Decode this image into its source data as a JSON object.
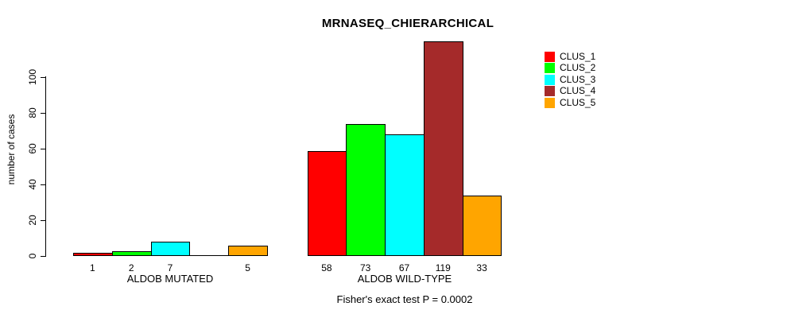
{
  "chart_data": {
    "type": "bar",
    "title": "MRNASEQ_CHIERARCHICAL",
    "ylabel": "number of cases",
    "xlabel": "",
    "footnote": "Fisher's exact test P = 0.0002",
    "ylim": [
      0,
      119
    ],
    "yticks": [
      0,
      20,
      40,
      60,
      80,
      100
    ],
    "grid": false,
    "legend_position": "right-outside",
    "categories": [
      "ALDOB MUTATED",
      "ALDOB WILD-TYPE"
    ],
    "series": [
      {
        "name": "CLUS_1",
        "color": "#ff0000",
        "values": [
          1,
          58
        ]
      },
      {
        "name": "CLUS_2",
        "color": "#00ff00",
        "values": [
          2,
          73
        ]
      },
      {
        "name": "CLUS_3",
        "color": "#00ffff",
        "values": [
          7,
          67
        ]
      },
      {
        "name": "CLUS_4",
        "color": "#a52a2a",
        "values": [
          0,
          119
        ]
      },
      {
        "name": "CLUS_5",
        "color": "#ffa500",
        "values": [
          5,
          33
        ]
      }
    ],
    "bar_value_labels": [
      [
        "1",
        "2",
        "7",
        "",
        "5"
      ],
      [
        "58",
        "73",
        "67",
        "119",
        "33"
      ]
    ]
  }
}
